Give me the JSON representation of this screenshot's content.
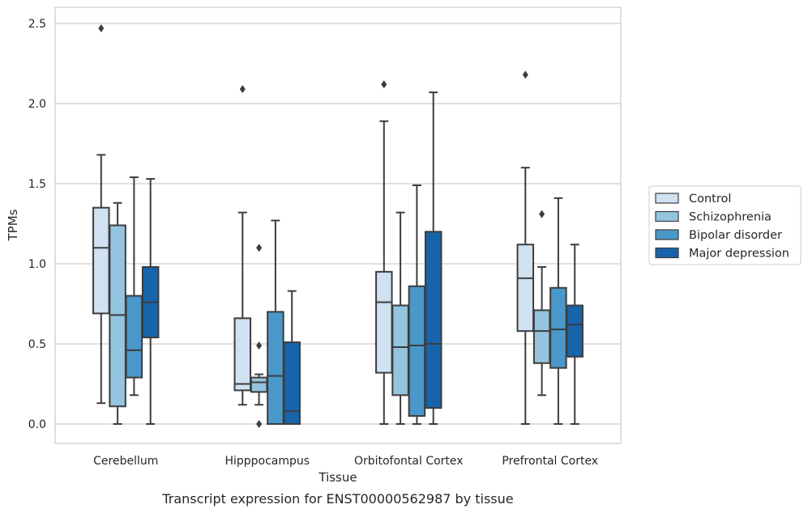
{
  "chart_data": {
    "type": "boxplot",
    "title": "",
    "caption": "Transcript expression for ENST00000562987 by tissue",
    "xlabel": "Tissue",
    "ylabel": "TPMs",
    "ylim": [
      -0.12,
      2.6
    ],
    "yticks": [
      0.0,
      0.5,
      1.0,
      1.5,
      2.0,
      2.5
    ],
    "ytick_labels": [
      "0.0",
      "0.5",
      "1.0",
      "1.5",
      "2.0",
      "2.5"
    ],
    "grid": "horizontal",
    "legend_position": "right",
    "categories": [
      "Cerebellum",
      "Hipppocampus",
      "Orbitofontal Cortex",
      "Prefrontal Cortex"
    ],
    "series": [
      {
        "name": "Control",
        "color": "#d0e1f2",
        "boxes": [
          {
            "whislo": 0.13,
            "q1": 0.69,
            "med": 1.1,
            "q3": 1.35,
            "whishi": 1.68,
            "fliers": [
              2.47
            ]
          },
          {
            "whislo": 0.12,
            "q1": 0.21,
            "med": 0.25,
            "q3": 0.66,
            "whishi": 1.32,
            "fliers": [
              2.09
            ]
          },
          {
            "whislo": 0.0,
            "q1": 0.32,
            "med": 0.76,
            "q3": 0.95,
            "whishi": 1.89,
            "fliers": [
              2.12
            ]
          },
          {
            "whislo": 0.0,
            "q1": 0.58,
            "med": 0.91,
            "q3": 1.12,
            "whishi": 1.6,
            "fliers": [
              2.18
            ]
          }
        ]
      },
      {
        "name": "Schizophrenia",
        "color": "#94c4df",
        "boxes": [
          {
            "whislo": 0.0,
            "q1": 0.11,
            "med": 0.68,
            "q3": 1.24,
            "whishi": 1.38,
            "fliers": []
          },
          {
            "whislo": 0.12,
            "q1": 0.2,
            "med": 0.26,
            "q3": 0.29,
            "whishi": 0.31,
            "fliers": [
              1.1,
              0.49,
              0.0
            ]
          },
          {
            "whislo": 0.0,
            "q1": 0.18,
            "med": 0.48,
            "q3": 0.74,
            "whishi": 1.32,
            "fliers": []
          },
          {
            "whislo": 0.18,
            "q1": 0.38,
            "med": 0.58,
            "q3": 0.71,
            "whishi": 0.98,
            "fliers": [
              1.31
            ]
          }
        ]
      },
      {
        "name": "Bipolar disorder",
        "color": "#4a98c9",
        "boxes": [
          {
            "whislo": 0.18,
            "q1": 0.29,
            "med": 0.46,
            "q3": 0.8,
            "whishi": 1.54,
            "fliers": []
          },
          {
            "whislo": 0.0,
            "q1": 0.0,
            "med": 0.3,
            "q3": 0.7,
            "whishi": 1.27,
            "fliers": []
          },
          {
            "whislo": 0.0,
            "q1": 0.05,
            "med": 0.49,
            "q3": 0.86,
            "whishi": 1.49,
            "fliers": []
          },
          {
            "whislo": 0.0,
            "q1": 0.35,
            "med": 0.59,
            "q3": 0.85,
            "whishi": 1.41,
            "fliers": []
          }
        ]
      },
      {
        "name": "Major depression",
        "color": "#1764ab",
        "boxes": [
          {
            "whislo": 0.0,
            "q1": 0.54,
            "med": 0.76,
            "q3": 0.98,
            "whishi": 1.53,
            "fliers": []
          },
          {
            "whislo": 0.0,
            "q1": 0.0,
            "med": 0.08,
            "q3": 0.51,
            "whishi": 0.83,
            "fliers": []
          },
          {
            "whislo": 0.0,
            "q1": 0.1,
            "med": 0.5,
            "q3": 1.2,
            "whishi": 2.07,
            "fliers": []
          },
          {
            "whislo": 0.0,
            "q1": 0.42,
            "med": 0.62,
            "q3": 0.74,
            "whishi": 1.12,
            "fliers": []
          }
        ]
      }
    ]
  }
}
